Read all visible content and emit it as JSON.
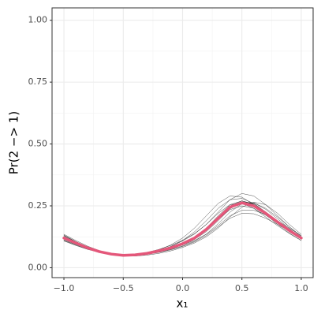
{
  "chart_data": {
    "type": "line",
    "x_label": "x₁",
    "y_label": "Pr(2 −> 1)",
    "x": [
      -1.0,
      -0.9,
      -0.8,
      -0.7,
      -0.6,
      -0.5,
      -0.4,
      -0.3,
      -0.2,
      -0.1,
      0.0,
      0.1,
      0.2,
      0.3,
      0.4,
      0.5,
      0.6,
      0.7,
      0.8,
      0.9,
      1.0
    ],
    "series": [
      {
        "color": "#000000",
        "values": [
          0.13,
          0.105,
          0.083,
          0.066,
          0.055,
          0.049,
          0.05,
          0.056,
          0.068,
          0.085,
          0.11,
          0.145,
          0.19,
          0.24,
          0.275,
          0.28,
          0.26,
          0.225,
          0.185,
          0.148,
          0.115
        ]
      },
      {
        "color": "#000000",
        "values": [
          0.11,
          0.092,
          0.075,
          0.062,
          0.053,
          0.048,
          0.049,
          0.054,
          0.062,
          0.072,
          0.086,
          0.104,
          0.13,
          0.165,
          0.2,
          0.22,
          0.218,
          0.2,
          0.175,
          0.148,
          0.125
        ]
      },
      {
        "color": "#000000",
        "values": [
          0.125,
          0.102,
          0.082,
          0.066,
          0.055,
          0.05,
          0.051,
          0.057,
          0.067,
          0.08,
          0.098,
          0.122,
          0.158,
          0.205,
          0.25,
          0.27,
          0.258,
          0.226,
          0.188,
          0.15,
          0.118
        ]
      },
      {
        "color": "#000000",
        "values": [
          0.115,
          0.096,
          0.078,
          0.064,
          0.054,
          0.049,
          0.051,
          0.059,
          0.072,
          0.092,
          0.12,
          0.16,
          0.21,
          0.26,
          0.29,
          0.285,
          0.255,
          0.215,
          0.175,
          0.14,
          0.11
        ]
      },
      {
        "color": "#000000",
        "values": [
          0.12,
          0.1,
          0.08,
          0.064,
          0.053,
          0.047,
          0.047,
          0.051,
          0.058,
          0.068,
          0.082,
          0.1,
          0.125,
          0.16,
          0.205,
          0.245,
          0.265,
          0.255,
          0.22,
          0.175,
          0.135
        ]
      },
      {
        "color": "#000000",
        "values": [
          0.135,
          0.11,
          0.087,
          0.069,
          0.057,
          0.051,
          0.052,
          0.058,
          0.068,
          0.082,
          0.1,
          0.124,
          0.16,
          0.21,
          0.255,
          0.27,
          0.255,
          0.222,
          0.185,
          0.15,
          0.12
        ]
      },
      {
        "color": "#000000",
        "values": [
          0.108,
          0.09,
          0.074,
          0.062,
          0.054,
          0.05,
          0.052,
          0.059,
          0.07,
          0.083,
          0.1,
          0.123,
          0.155,
          0.195,
          0.235,
          0.25,
          0.24,
          0.212,
          0.18,
          0.147,
          0.118
        ]
      },
      {
        "color": "#000000",
        "values": [
          0.118,
          0.098,
          0.079,
          0.064,
          0.054,
          0.049,
          0.05,
          0.056,
          0.065,
          0.077,
          0.092,
          0.11,
          0.135,
          0.17,
          0.21,
          0.232,
          0.232,
          0.215,
          0.19,
          0.16,
          0.13
        ]
      },
      {
        "color": "#000000",
        "values": [
          0.122,
          0.1,
          0.08,
          0.064,
          0.054,
          0.049,
          0.051,
          0.058,
          0.07,
          0.086,
          0.108,
          0.136,
          0.175,
          0.225,
          0.275,
          0.3,
          0.29,
          0.255,
          0.21,
          0.165,
          0.125
        ]
      },
      {
        "color": "#000000",
        "values": [
          0.128,
          0.104,
          0.083,
          0.066,
          0.055,
          0.049,
          0.05,
          0.055,
          0.064,
          0.076,
          0.092,
          0.114,
          0.146,
          0.19,
          0.238,
          0.265,
          0.262,
          0.236,
          0.198,
          0.158,
          0.122
        ]
      },
      {
        "color": "#000000",
        "values": [
          0.112,
          0.094,
          0.077,
          0.064,
          0.055,
          0.051,
          0.054,
          0.062,
          0.074,
          0.09,
          0.111,
          0.138,
          0.175,
          0.22,
          0.255,
          0.26,
          0.24,
          0.205,
          0.17,
          0.138,
          0.11
        ]
      },
      {
        "color": "#000000",
        "values": [
          0.132,
          0.106,
          0.084,
          0.067,
          0.056,
          0.05,
          0.05,
          0.055,
          0.063,
          0.074,
          0.088,
          0.107,
          0.136,
          0.178,
          0.225,
          0.258,
          0.262,
          0.24,
          0.205,
          0.165,
          0.128
        ]
      },
      {
        "color": "#e4577a",
        "values": [
          0.12,
          0.1,
          0.08,
          0.065,
          0.055,
          0.05,
          0.052,
          0.058,
          0.068,
          0.08,
          0.097,
          0.12,
          0.155,
          0.2,
          0.245,
          0.262,
          0.25,
          0.22,
          0.185,
          0.15,
          0.12
        ]
      }
    ],
    "xlim": [
      -1.1,
      1.1
    ],
    "ylim": [
      -0.04,
      1.05
    ],
    "xticks": [
      {
        "value": -1,
        "label": "−1.0"
      },
      {
        "value": -0.5,
        "label": "−0.5"
      },
      {
        "value": 0,
        "label": "0.0"
      },
      {
        "value": 0.5,
        "label": "0.5"
      },
      {
        "value": 1,
        "label": "1.0"
      }
    ],
    "yticks": [
      {
        "value": 0,
        "label": "0.00"
      },
      {
        "value": 0.25,
        "label": "0.25"
      },
      {
        "value": 0.5,
        "label": "0.50"
      },
      {
        "value": 0.75,
        "label": "0.75"
      },
      {
        "value": 1,
        "label": "1.00"
      }
    ],
    "x_minor_ticks": [
      -0.75,
      -0.25,
      0.25,
      0.75
    ],
    "y_minor_ticks": [
      0.125,
      0.375,
      0.625,
      0.875
    ],
    "grid": true
  }
}
